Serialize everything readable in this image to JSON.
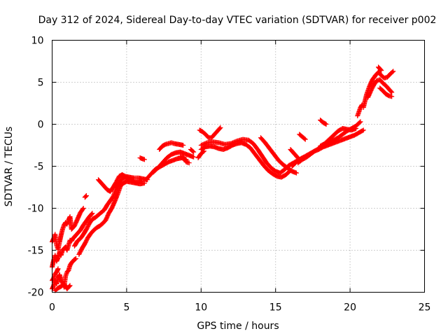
{
  "chart_data": {
    "type": "scatter",
    "title": "Day 312 of 2024, Sidereal Day-to-day VTEC variation (SDTVAR) for receiver p002",
    "xlabel": "GPS time / hours",
    "ylabel": "SDTVAR / TECUs",
    "xlim": [
      0,
      25
    ],
    "ylim": [
      -20,
      10
    ],
    "xticks": [
      0,
      5,
      10,
      15,
      20,
      25
    ],
    "yticks": [
      -20,
      -15,
      -10,
      -5,
      0,
      5,
      10
    ],
    "xtick_labels": [
      "0",
      "5",
      "10",
      "15",
      "20",
      "25"
    ],
    "ytick_labels": [
      "-20",
      "-15",
      "-10",
      "-5",
      "0",
      "5",
      "10"
    ],
    "grid": true,
    "marker": "plus",
    "color": "#ff0000",
    "series": [
      {
        "x": [
          0.0,
          0.1,
          0.2,
          0.3,
          0.4,
          0.5,
          0.6,
          0.7,
          0.8,
          0.9,
          1.0,
          1.1,
          1.2,
          1.3,
          1.5,
          1.7,
          1.9,
          2.1
        ],
        "y": [
          -14.0,
          -13.6,
          -13.1,
          -14.4,
          -14.9,
          -14.0,
          -13.2,
          -12.5,
          -12.0,
          -11.7,
          -11.9,
          -11.4,
          -11.0,
          -12.5,
          -12.1,
          -11.3,
          -10.5,
          -10.0
        ]
      },
      {
        "x": [
          0.0,
          0.1,
          0.2,
          0.3,
          0.4,
          0.5,
          0.6,
          0.7,
          0.8,
          0.9,
          1.0,
          1.1,
          1.2,
          1.3,
          1.4,
          1.5,
          1.7,
          1.9,
          2.1,
          2.3,
          2.5,
          2.7
        ],
        "y": [
          -17.0,
          -16.2,
          -15.6,
          -16.3,
          -15.9,
          -15.2,
          -15.6,
          -15.0,
          -14.8,
          -14.6,
          -15.0,
          -14.4,
          -13.8,
          -13.9,
          -13.6,
          -13.4,
          -13.0,
          -12.6,
          -12.0,
          -11.5,
          -11.0,
          -10.6
        ]
      },
      {
        "x": [
          0.0,
          0.1,
          0.2,
          0.3,
          0.4,
          0.5,
          0.6,
          0.7,
          0.8,
          0.9,
          1.0,
          1.1,
          1.2,
          1.3,
          1.4,
          1.5,
          1.6
        ],
        "y": [
          -19.6,
          -19.2,
          -18.6,
          -19.0,
          -18.3,
          -17.9,
          -18.6,
          -18.9,
          -19.4,
          -18.1,
          -17.6,
          -17.4,
          -16.8,
          -16.5,
          -16.3,
          -16.1,
          -16.0
        ]
      },
      {
        "x": [
          0.2,
          0.4,
          0.6,
          0.8,
          1.0,
          1.2
        ],
        "y": [
          -19.8,
          -19.5,
          -19.3,
          -19.0,
          -19.6,
          -19.2
        ]
      },
      {
        "x": [
          0.0,
          0.1,
          0.2,
          0.3,
          0.4
        ],
        "y": [
          -18.6,
          -18.3,
          -17.8,
          -17.6,
          -17.2
        ]
      },
      {
        "x": [
          1.5,
          1.7,
          1.9,
          2.1,
          2.3,
          2.5,
          2.7,
          2.9,
          3.1,
          3.3,
          3.5,
          3.7,
          3.9,
          4.1,
          4.3,
          4.5,
          4.7,
          4.9,
          5.1,
          5.3,
          5.5,
          5.7,
          6.0
        ],
        "y": [
          -14.5,
          -13.9,
          -13.6,
          -13.1,
          -12.5,
          -11.8,
          -11.3,
          -11.1,
          -10.8,
          -10.5,
          -10.2,
          -9.6,
          -9.1,
          -8.6,
          -7.6,
          -7.0,
          -6.5,
          -6.3,
          -6.5,
          -6.6,
          -6.8,
          -6.9,
          -6.8
        ]
      },
      {
        "x": [
          1.8,
          2.0,
          2.2,
          2.4,
          2.6,
          2.8,
          3.0,
          3.2,
          3.4,
          3.6,
          3.8,
          4.0,
          4.2,
          4.4,
          4.6,
          4.8,
          5.0,
          5.3,
          5.6,
          5.9,
          6.2
        ],
        "y": [
          -15.5,
          -14.8,
          -14.2,
          -13.5,
          -13.0,
          -12.6,
          -12.3,
          -12.1,
          -11.8,
          -11.4,
          -10.6,
          -10.0,
          -9.2,
          -8.3,
          -7.3,
          -7.0,
          -6.8,
          -6.9,
          -7.0,
          -7.1,
          -7.0
        ]
      },
      {
        "x": [
          3.1,
          3.3,
          3.5,
          3.7,
          3.9,
          4.1,
          4.3,
          4.5,
          4.7,
          4.9,
          5.2,
          5.5,
          5.8,
          6.1,
          6.4
        ],
        "y": [
          -6.6,
          -7.0,
          -7.4,
          -7.8,
          -8.0,
          -7.5,
          -6.9,
          -6.2,
          -6.0,
          -6.2,
          -6.3,
          -6.4,
          -6.4,
          -6.5,
          -6.6
        ]
      },
      {
        "x": [
          2.2,
          2.3
        ],
        "y": [
          -8.7,
          -8.5
        ]
      },
      {
        "x": [
          6.3,
          6.6,
          6.9,
          7.2,
          7.5,
          7.8,
          8.1,
          8.4,
          8.7,
          9.0
        ],
        "y": [
          -6.6,
          -6.0,
          -5.4,
          -5.1,
          -4.8,
          -4.5,
          -4.3,
          -4.1,
          -4.0,
          -4.2
        ]
      },
      {
        "x": [
          6.8,
          7.1,
          7.4,
          7.7,
          8.0,
          8.3,
          8.6,
          8.9,
          9.2,
          9.5
        ],
        "y": [
          -5.7,
          -5.2,
          -4.6,
          -4.0,
          -3.6,
          -3.4,
          -3.3,
          -3.5,
          -3.7,
          -3.9
        ]
      },
      {
        "x": [
          5.9,
          6.2
        ],
        "y": [
          -4.0,
          -4.2
        ]
      },
      {
        "x": [
          7.2,
          7.4,
          7.6,
          7.8,
          8.0,
          8.2,
          8.5,
          8.8
        ],
        "y": [
          -3.0,
          -2.6,
          -2.4,
          -2.3,
          -2.2,
          -2.3,
          -2.4,
          -2.5
        ]
      },
      {
        "x": [
          8.6,
          8.8,
          9.0,
          9.2
        ],
        "y": [
          -3.8,
          -3.9,
          -4.5,
          -4.6
        ]
      },
      {
        "x": [
          9.3,
          9.5
        ],
        "y": [
          -3.0,
          -3.3
        ]
      },
      {
        "x": [
          10.0,
          10.4,
          10.8,
          11.2,
          11.6,
          12.0,
          12.4,
          12.8,
          13.2,
          13.5,
          13.8,
          14.1,
          14.4,
          14.7,
          15.0,
          15.3,
          15.6,
          15.9,
          16.2,
          16.5,
          16.8
        ],
        "y": [
          -2.5,
          -2.2,
          -2.1,
          -2.2,
          -2.4,
          -2.3,
          -2.0,
          -1.8,
          -1.9,
          -2.3,
          -3.0,
          -3.8,
          -4.6,
          -5.2,
          -5.6,
          -5.8,
          -5.4,
          -4.9,
          -4.6,
          -4.3,
          -4.0
        ]
      },
      {
        "x": [
          10.0,
          10.3,
          10.6,
          10.9,
          11.2,
          11.5,
          11.8,
          12.1,
          12.4,
          12.7,
          13.0,
          13.3,
          13.6,
          13.9,
          14.2,
          14.5,
          14.8,
          15.1,
          15.4,
          15.7,
          16.0
        ],
        "y": [
          -3.0,
          -2.7,
          -2.6,
          -2.7,
          -2.9,
          -3.0,
          -2.8,
          -2.5,
          -2.3,
          -2.2,
          -2.4,
          -2.8,
          -3.5,
          -4.2,
          -4.9,
          -5.5,
          -5.9,
          -6.2,
          -6.3,
          -6.0,
          -5.5
        ]
      },
      {
        "x": [
          9.9,
          10.1,
          10.3,
          10.5,
          10.7,
          10.9,
          11.1,
          11.3
        ],
        "y": [
          -0.7,
          -0.9,
          -1.2,
          -1.6,
          -1.6,
          -1.2,
          -0.8,
          -0.4
        ]
      },
      {
        "x": [
          9.8,
          10.0,
          10.2
        ],
        "y": [
          -4.0,
          -3.5,
          -3.2
        ]
      },
      {
        "x": [
          14.0,
          14.3,
          14.6,
          14.9,
          15.2,
          15.5,
          15.8,
          16.1,
          16.4
        ],
        "y": [
          -1.6,
          -2.2,
          -2.9,
          -3.6,
          -4.3,
          -4.8,
          -5.2,
          -5.6,
          -5.8
        ]
      },
      {
        "x": [
          16.1,
          16.4,
          16.7,
          17.0,
          17.3,
          17.6,
          17.9,
          18.2,
          18.5,
          18.8,
          19.1,
          19.4,
          19.7,
          20.0,
          20.3,
          20.6,
          20.9
        ],
        "y": [
          -5.0,
          -4.5,
          -4.1,
          -3.8,
          -3.5,
          -3.2,
          -3.0,
          -2.7,
          -2.5,
          -2.3,
          -2.1,
          -1.9,
          -1.7,
          -1.5,
          -1.3,
          -1.0,
          -0.7
        ]
      },
      {
        "x": [
          16.5,
          16.8,
          17.1,
          17.4,
          17.7,
          18.0,
          18.3,
          18.6,
          18.9,
          19.2,
          19.5,
          19.8,
          20.1,
          20.4,
          20.7
        ],
        "y": [
          -4.6,
          -4.2,
          -3.9,
          -3.5,
          -3.1,
          -2.8,
          -2.5,
          -2.2,
          -1.9,
          -1.6,
          -1.2,
          -0.8,
          -0.5,
          -0.2,
          0.3
        ]
      },
      {
        "x": [
          16.0,
          16.2,
          16.4,
          16.6
        ],
        "y": [
          -3.0,
          -3.4,
          -3.8,
          -4.2
        ]
      },
      {
        "x": [
          16.6,
          16.8,
          17.0
        ],
        "y": [
          -1.2,
          -1.5,
          -1.8
        ]
      },
      {
        "x": [
          18.0,
          18.3,
          18.6,
          18.9,
          19.2,
          19.5,
          19.8,
          20.1,
          20.4
        ],
        "y": [
          -2.6,
          -2.3,
          -1.8,
          -1.3,
          -0.8,
          -0.5,
          -0.6,
          -0.7,
          -0.5
        ]
      },
      {
        "x": [
          18.0,
          18.2,
          18.4
        ],
        "y": [
          0.5,
          0.2,
          0.0
        ]
      },
      {
        "x": [
          20.5,
          20.6,
          20.7,
          20.8
        ],
        "y": [
          1.0,
          1.5,
          2.0,
          2.3
        ]
      },
      {
        "x": [
          20.9,
          21.1,
          21.3,
          21.5,
          21.7,
          21.9,
          22.1,
          22.3,
          22.5,
          22.7,
          22.9
        ],
        "y": [
          2.0,
          3.5,
          4.5,
          5.3,
          5.8,
          6.2,
          5.8,
          5.5,
          5.6,
          6.0,
          6.3
        ]
      },
      {
        "x": [
          21.2,
          21.4,
          21.6,
          21.8,
          22.0,
          22.2,
          22.4,
          22.6,
          22.8
        ],
        "y": [
          3.2,
          4.0,
          4.7,
          5.2,
          5.3,
          4.9,
          4.6,
          4.2,
          3.8
        ]
      },
      {
        "x": [
          22.0,
          22.2,
          22.4,
          22.6,
          22.8
        ],
        "y": [
          4.3,
          4.0,
          3.6,
          3.4,
          3.3
        ]
      },
      {
        "x": [
          21.9,
          22.0,
          22.1
        ],
        "y": [
          6.8,
          6.6,
          6.4
        ]
      }
    ]
  }
}
